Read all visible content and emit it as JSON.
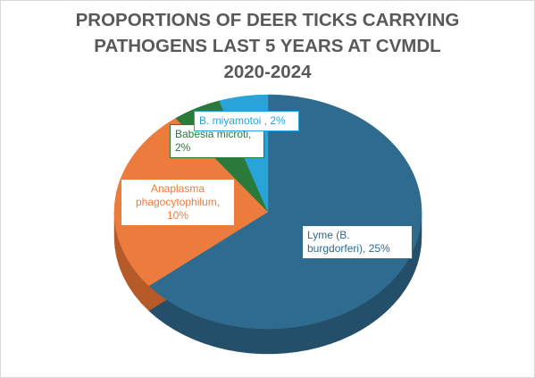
{
  "chart_data": {
    "type": "pie",
    "title_lines": [
      "PROPORTIONS OF DEER TICKS CARRYING",
      "PATHOGENS LAST 5 YEARS AT CVMDL",
      "2020-2024"
    ],
    "slices": [
      {
        "name": "Lyme (B. burgdorferi)",
        "label_lines": [
          "Lyme (B.",
          "burgdorferi), 25%"
        ],
        "value": 25,
        "color": "#2e6b8e",
        "dark": "#234f6a",
        "label_color": "#2e6b8e"
      },
      {
        "name": "Anaplasma phagocytophilum",
        "label_lines": [
          "Anaplasma",
          "phagocytophilum,",
          "10%"
        ],
        "value": 10,
        "color": "#ec7c3d",
        "dark": "#b55a28",
        "label_color": "#ec7c3d"
      },
      {
        "name": "Babesia microti",
        "label_lines": [
          "Babesia microti,",
          "2%"
        ],
        "value": 2,
        "color": "#2a7a3b",
        "dark": "#1e5a2b",
        "label_color": "#2a7a3b"
      },
      {
        "name": "B. miyamotoi",
        "label_lines": [
          "B. miyamotoi  , 2%"
        ],
        "value": 2,
        "color": "#29a4d8",
        "dark": "#1f7ea6",
        "label_color": "#29a4d8"
      }
    ],
    "legend": "none",
    "style": "3d-pie"
  }
}
